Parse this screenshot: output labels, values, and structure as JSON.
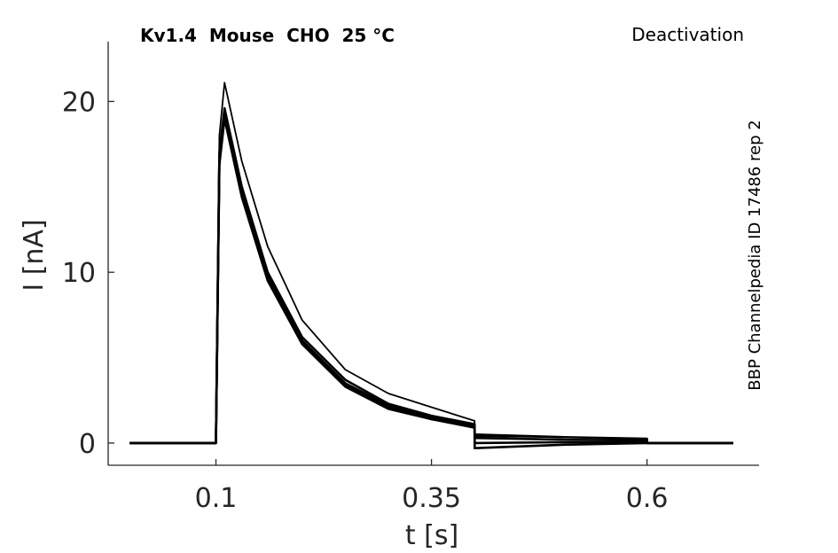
{
  "chart_data": {
    "type": "line",
    "title": "Kv1.4  Mouse  CHO  25 °C",
    "protocol_label": "Deactivation",
    "side_label": "BBP Channelpedia ID 17486 rep 2",
    "xlabel": "t [s]",
    "ylabel": "I [nA]",
    "xlim": [
      -0.025,
      0.73
    ],
    "ylim": [
      -1.3,
      23.5
    ],
    "xticks": [
      0.1,
      0.35,
      0.6
    ],
    "xtick_labels": [
      "0.1",
      "0.35",
      "0.6"
    ],
    "yticks": [
      0,
      10,
      20
    ],
    "ytick_labels": [
      "0",
      "10",
      "20"
    ],
    "grid": false,
    "line_color": "#000000",
    "series": [
      {
        "x": [
          0.0,
          0.1,
          0.104,
          0.11,
          0.13,
          0.16,
          0.2,
          0.25,
          0.3,
          0.35,
          0.4,
          0.4001,
          0.5,
          0.6,
          0.6001,
          0.7
        ],
        "y": [
          0,
          0,
          18,
          21.1,
          16.5,
          11.5,
          7.2,
          4.3,
          2.9,
          2.1,
          1.3,
          0.4,
          0.35,
          0.25,
          0,
          0
        ]
      },
      {
        "x": [
          0.0,
          0.1,
          0.104,
          0.11,
          0.13,
          0.16,
          0.2,
          0.25,
          0.3,
          0.35,
          0.4,
          0.4001,
          0.5,
          0.6,
          0.6001,
          0.7
        ],
        "y": [
          0,
          0,
          17,
          19.6,
          15.0,
          10.0,
          6.2,
          3.7,
          2.3,
          1.6,
          1.1,
          0.5,
          0.35,
          0.25,
          0,
          0
        ]
      },
      {
        "x": [
          0.0,
          0.1,
          0.104,
          0.11,
          0.13,
          0.16,
          0.2,
          0.25,
          0.3,
          0.35,
          0.4,
          0.4001,
          0.5,
          0.6,
          0.6001,
          0.7
        ],
        "y": [
          0,
          0,
          16.8,
          19.4,
          14.8,
          9.8,
          6.0,
          3.5,
          2.2,
          1.5,
          1.0,
          0.3,
          0.2,
          0.15,
          0,
          0
        ]
      },
      {
        "x": [
          0.0,
          0.1,
          0.104,
          0.11,
          0.13,
          0.16,
          0.2,
          0.25,
          0.3,
          0.35,
          0.4,
          0.4001,
          0.5,
          0.6,
          0.6001,
          0.7
        ],
        "y": [
          0,
          0,
          16.5,
          19.2,
          14.6,
          9.7,
          5.9,
          3.4,
          2.1,
          1.4,
          1.0,
          0.0,
          0.05,
          0.05,
          0,
          0
        ]
      },
      {
        "x": [
          0.0,
          0.1,
          0.104,
          0.11,
          0.13,
          0.16,
          0.2,
          0.25,
          0.3,
          0.35,
          0.4,
          0.4001,
          0.5,
          0.6,
          0.6001,
          0.7
        ],
        "y": [
          0,
          0,
          16.3,
          19.0,
          14.4,
          9.5,
          5.8,
          3.3,
          2.0,
          1.4,
          0.9,
          -0.3,
          -0.1,
          0.0,
          0,
          0
        ]
      }
    ]
  }
}
